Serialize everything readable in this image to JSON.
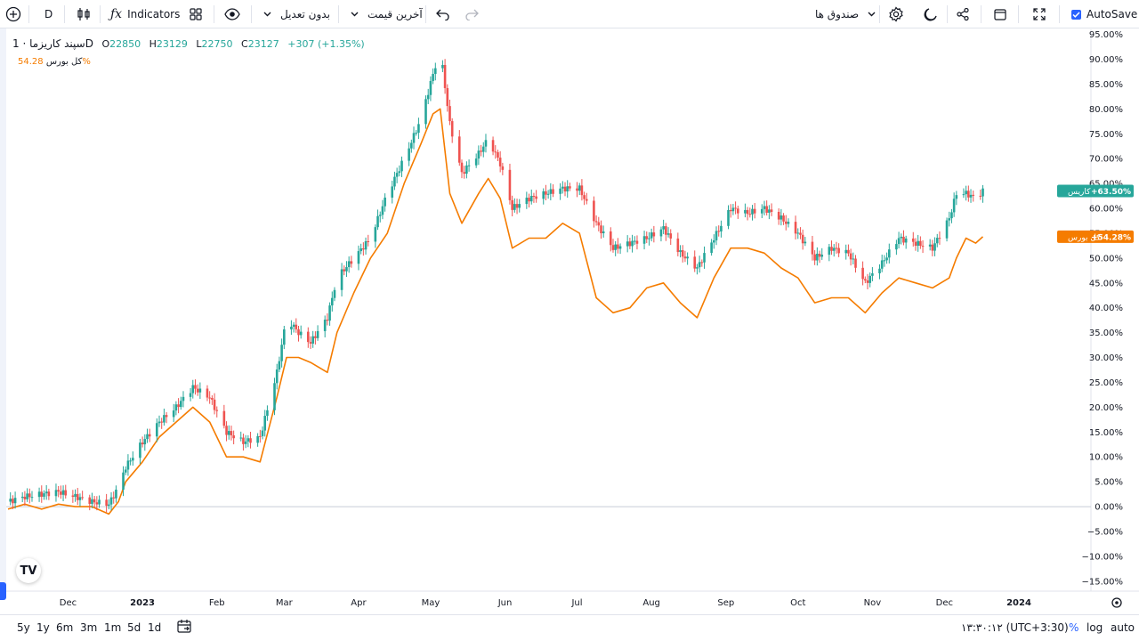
{
  "toolbar": {
    "timeframe": "D",
    "indicators_label": "Indicators",
    "adjust_label": "بدون تعدیل",
    "price_label": "آخرین قیمت",
    "funds_label": "صندوق ها",
    "autosave_label": "AutoSave",
    "autosave_checked": true
  },
  "legend": {
    "symbol": "سپند کاریزما · 1D",
    "o_label": "O",
    "o": "22850",
    "h_label": "H",
    "h": "23129",
    "l_label": "L",
    "l": "22750",
    "c_label": "C",
    "c": "23127",
    "change": "+307 (+1.35%)",
    "overlay_name": "کل بورس",
    "overlay_value": "54.28%"
  },
  "bottom": {
    "ranges": [
      "5y",
      "1y",
      "6m",
      "3m",
      "1m",
      "5d",
      "1d"
    ],
    "time": "۱۳:۳۰:۱۲ (UTC+3:30)",
    "percent": "%",
    "log": "log",
    "auto": "auto"
  },
  "colors": {
    "up": "#26a69a",
    "down": "#ef5350",
    "overlay": "#f57c00",
    "accent": "#2962ff"
  },
  "chart_data": {
    "type": "line",
    "y_unit": "%",
    "ylim": [
      -17,
      96
    ],
    "y_ticks": [
      95,
      90,
      85,
      80,
      75,
      70,
      65,
      60,
      55,
      50,
      45,
      40,
      35,
      30,
      25,
      20,
      15,
      10,
      5,
      0,
      -5,
      -10,
      -15
    ],
    "x_labels": [
      {
        "label": "Dec",
        "date": "2022-12-01"
      },
      {
        "label": "2023",
        "date": "2023-01-01"
      },
      {
        "label": "Feb",
        "date": "2023-02-01"
      },
      {
        "label": "Mar",
        "date": "2023-03-01"
      },
      {
        "label": "Apr",
        "date": "2023-04-01"
      },
      {
        "label": "May",
        "date": "2023-05-01"
      },
      {
        "label": "Jun",
        "date": "2023-06-01"
      },
      {
        "label": "Jul",
        "date": "2023-07-01"
      },
      {
        "label": "Aug",
        "date": "2023-08-01"
      },
      {
        "label": "Sep",
        "date": "2023-09-01"
      },
      {
        "label": "Oct",
        "date": "2023-10-01"
      },
      {
        "label": "Nov",
        "date": "2023-11-01"
      },
      {
        "label": "Dec",
        "date": "2023-12-01"
      },
      {
        "label": "2024",
        "date": "2024-01-01"
      }
    ],
    "grid": false,
    "series": [
      {
        "name": "کاریس",
        "style": "candles-close",
        "last_label": "+63.50%",
        "points": [
          [
            "2022-11-06",
            1
          ],
          [
            "2022-11-13",
            2
          ],
          [
            "2022-11-20",
            2.5
          ],
          [
            "2022-11-27",
            3
          ],
          [
            "2022-12-04",
            2
          ],
          [
            "2022-12-11",
            1
          ],
          [
            "2022-12-18",
            0.5
          ],
          [
            "2022-12-22",
            4
          ],
          [
            "2022-12-25",
            8
          ],
          [
            "2023-01-01",
            13
          ],
          [
            "2023-01-08",
            17
          ],
          [
            "2023-01-15",
            20
          ],
          [
            "2023-01-22",
            24
          ],
          [
            "2023-01-29",
            22
          ],
          [
            "2023-02-05",
            15
          ],
          [
            "2023-02-12",
            13
          ],
          [
            "2023-02-19",
            14
          ],
          [
            "2023-02-26",
            27
          ],
          [
            "2023-03-02",
            38
          ],
          [
            "2023-03-07",
            35
          ],
          [
            "2023-03-12",
            33
          ],
          [
            "2023-03-19",
            38
          ],
          [
            "2023-03-23",
            46
          ],
          [
            "2023-03-30",
            50
          ],
          [
            "2023-04-06",
            54
          ],
          [
            "2023-04-13",
            63
          ],
          [
            "2023-04-20",
            70
          ],
          [
            "2023-04-27",
            78
          ],
          [
            "2023-05-02",
            87
          ],
          [
            "2023-05-05",
            92
          ],
          [
            "2023-05-09",
            77
          ],
          [
            "2023-05-14",
            67
          ],
          [
            "2023-05-21",
            71
          ],
          [
            "2023-05-25",
            74
          ],
          [
            "2023-05-30",
            69
          ],
          [
            "2023-06-04",
            60
          ],
          [
            "2023-06-11",
            62
          ],
          [
            "2023-06-18",
            63
          ],
          [
            "2023-06-25",
            64
          ],
          [
            "2023-07-02",
            64
          ],
          [
            "2023-07-09",
            57
          ],
          [
            "2023-07-16",
            52
          ],
          [
            "2023-07-23",
            53
          ],
          [
            "2023-07-30",
            54
          ],
          [
            "2023-08-06",
            56
          ],
          [
            "2023-08-13",
            51
          ],
          [
            "2023-08-20",
            48
          ],
          [
            "2023-08-27",
            54
          ],
          [
            "2023-09-03",
            60
          ],
          [
            "2023-09-10",
            59
          ],
          [
            "2023-09-17",
            60
          ],
          [
            "2023-09-24",
            58
          ],
          [
            "2023-10-01",
            55
          ],
          [
            "2023-10-08",
            50
          ],
          [
            "2023-10-15",
            52
          ],
          [
            "2023-10-22",
            51
          ],
          [
            "2023-10-29",
            45
          ],
          [
            "2023-11-05",
            49
          ],
          [
            "2023-11-12",
            54
          ],
          [
            "2023-11-19",
            53
          ],
          [
            "2023-11-26",
            52
          ],
          [
            "2023-12-03",
            58
          ],
          [
            "2023-12-06",
            63
          ],
          [
            "2023-12-10",
            63
          ],
          [
            "2023-12-14",
            62
          ],
          [
            "2023-12-17",
            63.5
          ]
        ]
      },
      {
        "name": "کل بورس",
        "style": "line",
        "last_label": "+54.28%",
        "points": [
          [
            "2022-11-06",
            -0.5
          ],
          [
            "2022-11-13",
            0.5
          ],
          [
            "2022-11-20",
            -0.5
          ],
          [
            "2022-11-27",
            0.5
          ],
          [
            "2022-12-04",
            0
          ],
          [
            "2022-12-11",
            0
          ],
          [
            "2022-12-18",
            -1.5
          ],
          [
            "2022-12-22",
            1
          ],
          [
            "2022-12-25",
            5
          ],
          [
            "2023-01-01",
            9
          ],
          [
            "2023-01-08",
            14
          ],
          [
            "2023-01-15",
            17
          ],
          [
            "2023-01-22",
            20
          ],
          [
            "2023-01-29",
            17
          ],
          [
            "2023-02-05",
            10
          ],
          [
            "2023-02-12",
            10
          ],
          [
            "2023-02-19",
            9
          ],
          [
            "2023-02-26",
            22
          ],
          [
            "2023-03-02",
            30
          ],
          [
            "2023-03-07",
            30
          ],
          [
            "2023-03-12",
            29
          ],
          [
            "2023-03-19",
            27
          ],
          [
            "2023-03-23",
            35
          ],
          [
            "2023-03-30",
            43
          ],
          [
            "2023-04-06",
            50
          ],
          [
            "2023-04-13",
            55
          ],
          [
            "2023-04-20",
            65
          ],
          [
            "2023-04-27",
            73
          ],
          [
            "2023-05-02",
            79
          ],
          [
            "2023-05-05",
            80
          ],
          [
            "2023-05-09",
            63
          ],
          [
            "2023-05-14",
            57
          ],
          [
            "2023-05-21",
            63
          ],
          [
            "2023-05-25",
            66
          ],
          [
            "2023-05-30",
            62
          ],
          [
            "2023-06-04",
            52
          ],
          [
            "2023-06-11",
            54
          ],
          [
            "2023-06-18",
            54
          ],
          [
            "2023-06-25",
            57
          ],
          [
            "2023-07-02",
            55
          ],
          [
            "2023-07-09",
            42
          ],
          [
            "2023-07-16",
            39
          ],
          [
            "2023-07-23",
            40
          ],
          [
            "2023-07-30",
            44
          ],
          [
            "2023-08-06",
            45
          ],
          [
            "2023-08-13",
            41
          ],
          [
            "2023-08-20",
            38
          ],
          [
            "2023-08-27",
            46
          ],
          [
            "2023-09-03",
            52
          ],
          [
            "2023-09-10",
            52
          ],
          [
            "2023-09-17",
            51
          ],
          [
            "2023-09-24",
            48
          ],
          [
            "2023-10-01",
            46
          ],
          [
            "2023-10-08",
            41
          ],
          [
            "2023-10-15",
            42
          ],
          [
            "2023-10-22",
            42
          ],
          [
            "2023-10-29",
            39
          ],
          [
            "2023-11-05",
            43
          ],
          [
            "2023-11-12",
            46
          ],
          [
            "2023-11-19",
            45
          ],
          [
            "2023-11-26",
            44
          ],
          [
            "2023-12-03",
            46
          ],
          [
            "2023-12-06",
            50
          ],
          [
            "2023-12-10",
            54
          ],
          [
            "2023-12-14",
            53
          ],
          [
            "2023-12-17",
            54.3
          ]
        ]
      }
    ],
    "baseline": 0
  }
}
